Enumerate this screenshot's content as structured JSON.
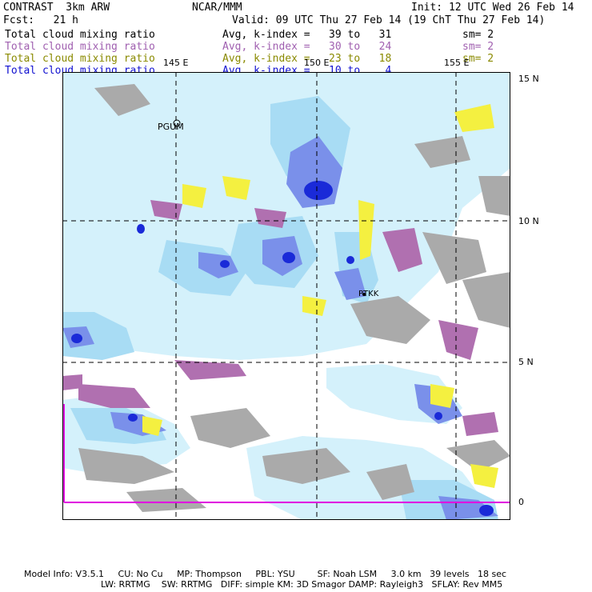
{
  "header": {
    "model": "CONTRAST  3km ARW",
    "org": "NCAR/MMM",
    "init": "Init: 12 UTC Wed 26 Feb 14",
    "fcst": "Fcst:   21 h",
    "valid": "Valid: 09 UTC Thu 27 Feb 14 (19 ChT Thu 27 Feb 14)"
  },
  "fields": [
    {
      "name": "Total cloud mixing ratio",
      "range": "Avg, k-index =   39 to   31",
      "sm": "sm= 2",
      "color": "#000000"
    },
    {
      "name": "Total cloud mixing ratio",
      "range": "Avg, k-index =   30 to   24",
      "sm": "sm= 2",
      "color": "#a060b0"
    },
    {
      "name": "Total cloud mixing ratio",
      "range": "Avg, k-index =   23 to   18",
      "sm": "sm= 2",
      "color": "#8a8a00"
    },
    {
      "name": "Total cloud mixing ratio",
      "range": "Avg, k-index =   10 to    4",
      "sm": "",
      "color": "#1010d0"
    }
  ],
  "map": {
    "lon_labels": [
      "145 E",
      "150 E",
      "155 E"
    ],
    "lat_labels": [
      "15 N",
      "10 N",
      "5 N",
      "0"
    ],
    "stations": [
      "PGUM",
      "PTKK"
    ],
    "colors": {
      "light_cloud": "#d4f1fb",
      "mid_cloud": "#a8dcf4",
      "blue_cloud": "#7a90ea",
      "dark_blue": "#1a2ad8",
      "gray": "#aaaaaa",
      "purple": "#b070b0",
      "yellow": "#f4f040",
      "equator_line": "#e000e0"
    }
  },
  "footer": {
    "line1": "Model Info: V3.5.1     CU: No Cu     MP: Thompson     PBL: YSU        SF: Noah LSM     3.0 km   39 levels   18 sec",
    "line2": "LW: RRTMG    SW: RRTMG   DIFF: simple KM: 3D Smagor DAMP: Rayleigh3   SFLAY: Rev MM5"
  }
}
